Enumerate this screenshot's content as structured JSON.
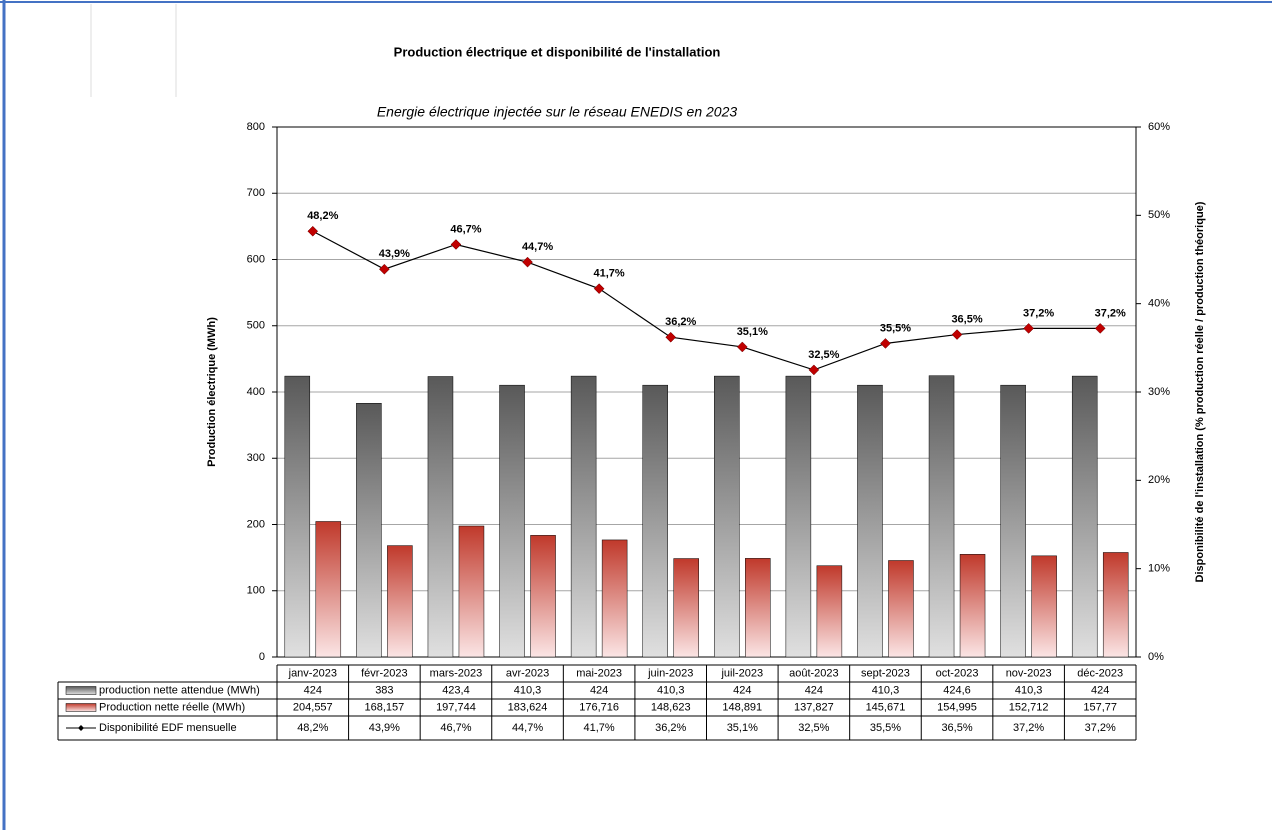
{
  "chart_data": {
    "type": "bar-line",
    "title": "Production électrique et disponibilité de l'installation",
    "subtitle": "Energie électrique injectée sur le réseau ENEDIS en 2023",
    "y_label": "Production électrique (MWh)",
    "y2_label": "Disponibilité de l'installation (% production réelle / production théorique)",
    "categories": [
      "janv-2023",
      "févr-2023",
      "mars-2023",
      "avr-2023",
      "mai-2023",
      "juin-2023",
      "juil-2023",
      "août-2023",
      "sept-2023",
      "oct-2023",
      "nov-2023",
      "déc-2023"
    ],
    "series": [
      {
        "name": "production nette attendue (MWh)",
        "type": "bar",
        "color": "#595959",
        "values": [
          424,
          383,
          423.4,
          410.3,
          424,
          410.3,
          424,
          424,
          410.3,
          424.6,
          410.3,
          424
        ],
        "value_labels": [
          "424",
          "383",
          "423,4",
          "410,3",
          "424",
          "410,3",
          "424",
          "424",
          "410,3",
          "424,6",
          "410,3",
          "424"
        ]
      },
      {
        "name": "Production nette réelle (MWh)",
        "type": "bar",
        "color": "#c0392b",
        "values": [
          204.557,
          168.157,
          197.744,
          183.624,
          176.716,
          148.623,
          148.891,
          137.827,
          145.671,
          154.995,
          152.712,
          157.77
        ],
        "value_labels": [
          "204,557",
          "168,157",
          "197,744",
          "183,624",
          "176,716",
          "148,623",
          "148,891",
          "137,827",
          "145,671",
          "154,995",
          "152,712",
          "157,77"
        ]
      },
      {
        "name": "Disponibilité EDF mensuelle",
        "type": "line",
        "axis": "y2",
        "color": "#000000",
        "marker_color": "#c00000",
        "values": [
          48.2,
          43.9,
          46.7,
          44.7,
          41.7,
          36.2,
          35.1,
          32.5,
          35.5,
          36.5,
          37.2,
          37.2
        ],
        "value_labels": [
          "48,2%",
          "43,9%",
          "46,7%",
          "44,7%",
          "41,7%",
          "36,2%",
          "35,1%",
          "32,5%",
          "35,5%",
          "36,5%",
          "37,2%",
          "37,2%"
        ]
      }
    ],
    "ylim": [
      0,
      800
    ],
    "yticks": [
      0,
      100,
      200,
      300,
      400,
      500,
      600,
      700,
      800
    ],
    "y2lim": [
      0,
      60
    ],
    "y2ticks": [
      {
        "value": 0,
        "label": "0%"
      },
      {
        "value": 10,
        "label": "10%"
      },
      {
        "value": 20,
        "label": "20%"
      },
      {
        "value": 30,
        "label": "30%"
      },
      {
        "value": 40,
        "label": "40%"
      },
      {
        "value": 50,
        "label": "50%"
      },
      {
        "value": 60,
        "label": "60%"
      }
    ],
    "grid": true
  }
}
